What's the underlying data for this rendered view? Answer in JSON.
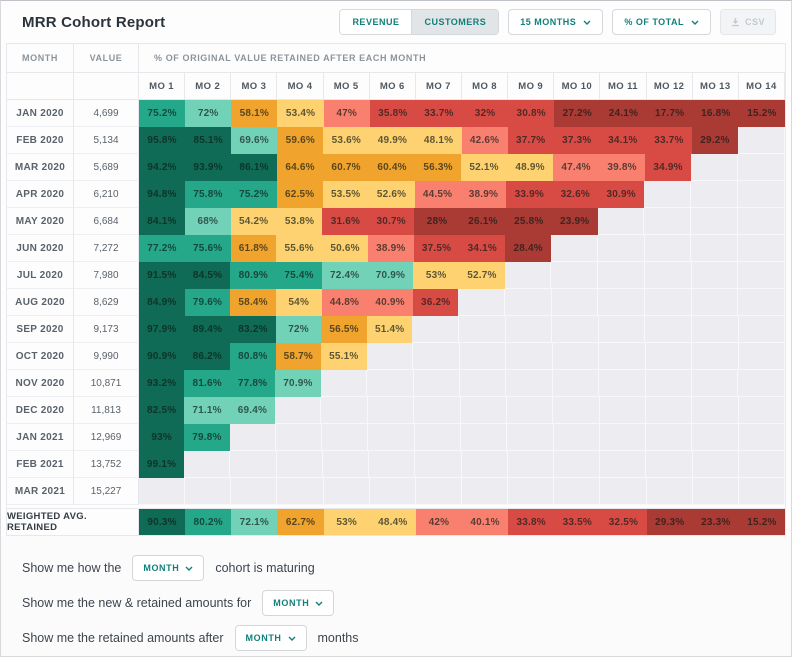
{
  "header": {
    "title": "MRR Cohort Report",
    "revenue_label": "REVENUE",
    "customers_label": "CUSTOMERS",
    "months_dropdown": "15 MONTHS",
    "total_dropdown": "% OF TOTAL",
    "csv_label": "CSV"
  },
  "table": {
    "col_month": "MONTH",
    "col_value": "VALUE",
    "subheader": "% OF ORIGINAL VALUE RETAINED AFTER EACH MONTH",
    "mo_headers": [
      "MO 1",
      "MO 2",
      "MO 3",
      "MO 4",
      "MO 5",
      "MO 6",
      "MO 7",
      "MO 8",
      "MO 9",
      "MO 10",
      "MO 11",
      "MO 12",
      "MO 13",
      "MO 14"
    ],
    "rows": [
      {
        "month": "JAN 2020",
        "value": "4,699",
        "cells": [
          "75.2%",
          "72%",
          "58.1%",
          "53.4%",
          "47%",
          "35.8%",
          "33.7%",
          "32%",
          "30.8%",
          "27.2%",
          "24.1%",
          "17.7%",
          "16.8%",
          "15.2%"
        ]
      },
      {
        "month": "FEB 2020",
        "value": "5,134",
        "cells": [
          "95.8%",
          "85.1%",
          "69.6%",
          "59.6%",
          "53.6%",
          "49.9%",
          "48.1%",
          "42.6%",
          "37.7%",
          "37.3%",
          "34.1%",
          "33.7%",
          "29.2%"
        ]
      },
      {
        "month": "MAR 2020",
        "value": "5,689",
        "cells": [
          "94.2%",
          "93.9%",
          "86.1%",
          "64.6%",
          "60.7%",
          "60.4%",
          "56.3%",
          "52.1%",
          "48.9%",
          "47.4%",
          "39.8%",
          "34.9%"
        ]
      },
      {
        "month": "APR 2020",
        "value": "6,210",
        "cells": [
          "94.8%",
          "75.8%",
          "75.2%",
          "62.5%",
          "53.5%",
          "52.6%",
          "44.5%",
          "38.9%",
          "33.9%",
          "32.6%",
          "30.9%"
        ]
      },
      {
        "month": "MAY 2020",
        "value": "6,684",
        "cells": [
          "84.1%",
          "68%",
          "54.2%",
          "53.8%",
          "31.6%",
          "30.7%",
          "28%",
          "26.1%",
          "25.8%",
          "23.9%"
        ]
      },
      {
        "month": "JUN 2020",
        "value": "7,272",
        "cells": [
          "77.2%",
          "75.6%",
          "61.8%",
          "55.6%",
          "50.6%",
          "38.9%",
          "37.5%",
          "34.1%",
          "28.4%"
        ]
      },
      {
        "month": "JUL 2020",
        "value": "7,980",
        "cells": [
          "91.5%",
          "84.5%",
          "80.9%",
          "75.4%",
          "72.4%",
          "70.9%",
          "53%",
          "52.7%"
        ]
      },
      {
        "month": "AUG 2020",
        "value": "8,629",
        "cells": [
          "84.9%",
          "79.6%",
          "58.4%",
          "54%",
          "44.8%",
          "40.9%",
          "36.2%"
        ]
      },
      {
        "month": "SEP 2020",
        "value": "9,173",
        "cells": [
          "97.9%",
          "89.4%",
          "83.2%",
          "72%",
          "56.5%",
          "51.4%"
        ]
      },
      {
        "month": "OCT 2020",
        "value": "9,990",
        "cells": [
          "90.9%",
          "86.2%",
          "80.8%",
          "58.7%",
          "55.1%"
        ]
      },
      {
        "month": "NOV 2020",
        "value": "10,871",
        "cells": [
          "93.2%",
          "81.6%",
          "77.8%",
          "70.9%"
        ]
      },
      {
        "month": "DEC 2020",
        "value": "11,813",
        "cells": [
          "82.5%",
          "71.1%",
          "69.4%"
        ]
      },
      {
        "month": "JAN 2021",
        "value": "12,969",
        "cells": [
          "93%",
          "79.8%"
        ]
      },
      {
        "month": "FEB 2021",
        "value": "13,752",
        "cells": [
          "99.1%"
        ]
      },
      {
        "month": "MAR 2021",
        "value": "15,227",
        "cells": []
      }
    ],
    "weighted": {
      "label": "WEIGHTED AVG. RETAINED",
      "cells": [
        "90.3%",
        "80.2%",
        "72.1%",
        "62.7%",
        "53%",
        "48.4%",
        "42%",
        "40.1%",
        "33.8%",
        "33.5%",
        "32.5%",
        "29.3%",
        "23.3%",
        "15.2%"
      ]
    },
    "heat_scale": [
      {
        "min": 82,
        "bg": "#0f6b56"
      },
      {
        "min": 74,
        "bg": "#25a78a"
      },
      {
        "min": 67,
        "bg": "#72d2b7"
      },
      {
        "min": 56,
        "bg": "#f0a32d"
      },
      {
        "min": 48,
        "bg": "#fed271"
      },
      {
        "min": 38,
        "bg": "#f9806f"
      },
      {
        "min": 30,
        "bg": "#d84b45"
      },
      {
        "min": 0,
        "bg": "#a93a34"
      }
    ],
    "empty_cell_bg": "#ededf1",
    "cell_text_color": "rgba(15,25,22,0.68)"
  },
  "footer": {
    "line1": {
      "before": "Show me how the",
      "dropdown": "MONTH",
      "after": "cohort is maturing"
    },
    "line2": {
      "before": "Show me the new & retained amounts for",
      "dropdown": "MONTH",
      "after": ""
    },
    "line3": {
      "before": "Show me the retained amounts after",
      "dropdown": "MONTH",
      "after": "months"
    }
  },
  "colors": {
    "accent_teal": "#11807a",
    "disabled_text": "#c3c9d1"
  }
}
